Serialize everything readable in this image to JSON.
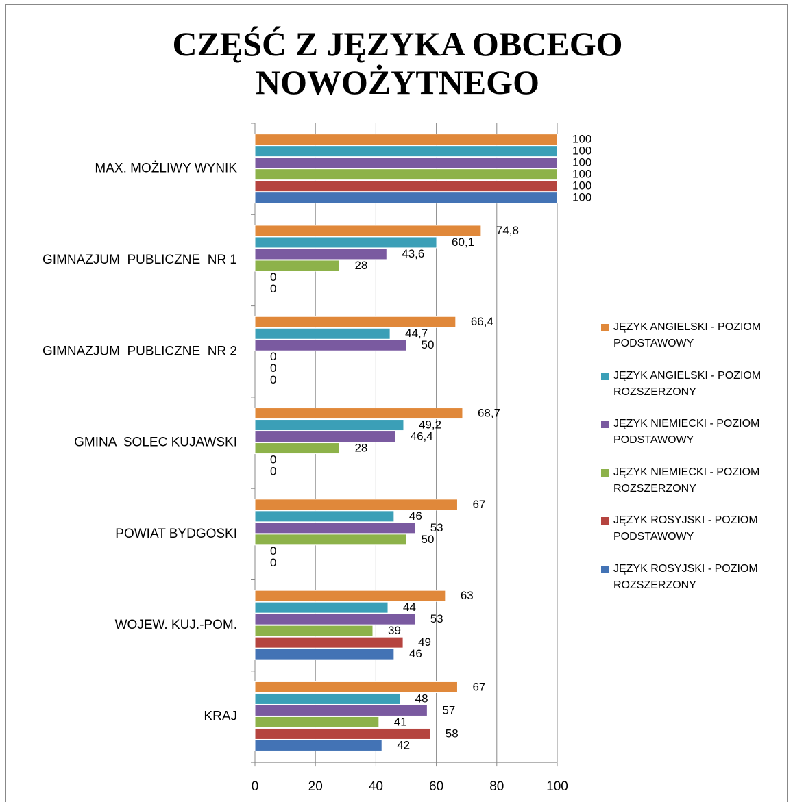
{
  "chart_data": {
    "type": "bar",
    "orientation": "horizontal",
    "title": "CZĘŚĆ Z JĘZYKA OBCEGO NOWOŻYTNEGO",
    "categories": [
      "MAX. MOŻLIWY WYNIK",
      "GIMNAZJUM  PUBLICZNE  NR 1",
      "GIMNAZJUM  PUBLICZNE  NR 2",
      "GMINA  SOLEC KUJAWSKI",
      "POWIAT BYDGOSKI",
      "WOJEW. KUJ.-POM.",
      "KRAJ"
    ],
    "series": [
      {
        "name": "JĘZYK ANGIELSKI  - POZIOM PODSTAWOWY",
        "color": "#e0883a",
        "values": [
          100,
          74.8,
          66.4,
          68.7,
          67,
          63,
          67
        ],
        "value_labels": [
          "100",
          "74,8",
          "66,4",
          "68,7",
          "67",
          "63",
          "67"
        ]
      },
      {
        "name": "JĘZYK ANGIELSKI  - POZIOM ROZSZERZONY",
        "color": "#3b9fb7",
        "values": [
          100,
          60.1,
          44.7,
          49.2,
          46,
          44,
          48
        ],
        "value_labels": [
          "100",
          "60,1",
          "44,7",
          "49,2",
          "46",
          "44",
          "48"
        ]
      },
      {
        "name": "JĘZYK NIEMIECKI  - POZIOM PODSTAWOWY",
        "color": "#7a5aa0",
        "values": [
          100,
          43.6,
          50,
          46.4,
          53,
          53,
          57
        ],
        "value_labels": [
          "100",
          "43,6",
          "50",
          "46,4",
          "53",
          "53",
          "57"
        ]
      },
      {
        "name": "JĘZYK NIEMIECKI  - POZIOM ROZSZERZONY",
        "color": "#8db24a",
        "values": [
          100,
          28,
          0,
          28,
          50,
          39,
          41
        ],
        "value_labels": [
          "100",
          "28",
          "0",
          "28",
          "50",
          "39",
          "41"
        ]
      },
      {
        "name": "JĘZYK ROSYJSKI  - POZIOM PODSTAWOWY",
        "color": "#b5443f",
        "values": [
          100,
          0,
          0,
          0,
          0,
          49,
          58
        ],
        "value_labels": [
          "100",
          "0",
          "0",
          "0",
          "0",
          "49",
          "58"
        ]
      },
      {
        "name": "JĘZYK ROSYJSKI  - POZIOM ROZSZERZONY",
        "color": "#4373b5",
        "values": [
          100,
          0,
          0,
          0,
          0,
          46,
          42
        ],
        "value_labels": [
          "100",
          "0",
          "0",
          "0",
          "0",
          "46",
          "42"
        ]
      }
    ],
    "xlim": [
      0,
      100
    ],
    "xticks": [
      0,
      20,
      40,
      60,
      80,
      100
    ],
    "grid": true,
    "legend": "right"
  }
}
